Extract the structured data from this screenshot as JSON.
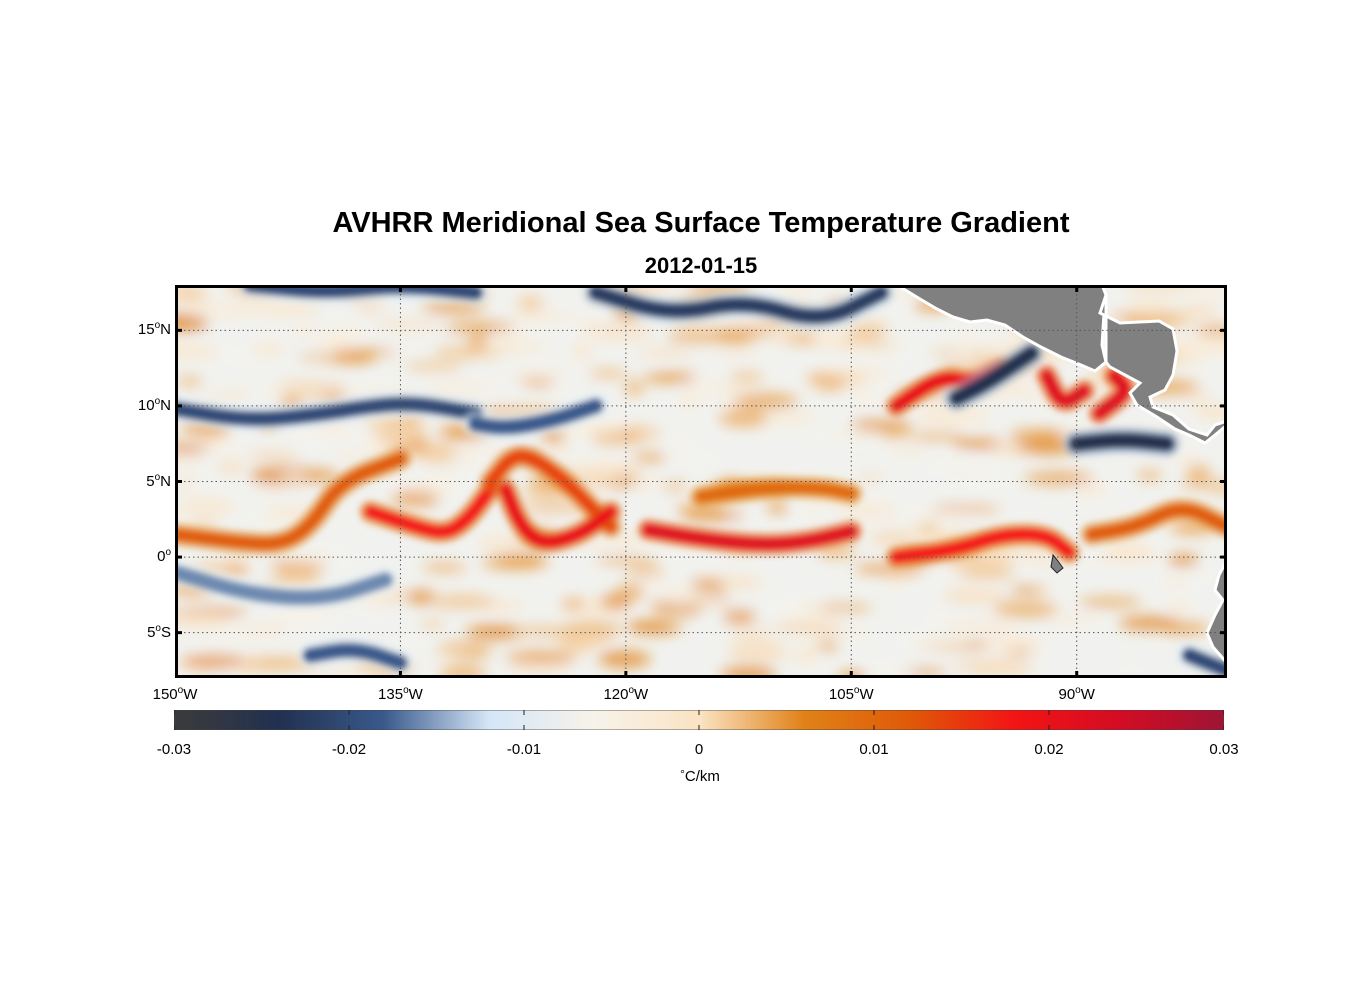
{
  "title": "AVHRR Meridional Sea Surface Temperature Gradient",
  "subtitle": "2012-01-15",
  "map": {
    "lon_range": [
      -150,
      -80
    ],
    "lat_range": [
      -8,
      18
    ],
    "lat_ticks": [
      {
        "value": 15,
        "num": "15",
        "hemi": "N"
      },
      {
        "value": 10,
        "num": "10",
        "hemi": "N"
      },
      {
        "value": 5,
        "num": "5",
        "hemi": "N"
      },
      {
        "value": 0,
        "num": "0",
        "hemi": ""
      },
      {
        "value": -5,
        "num": "5",
        "hemi": "S"
      }
    ],
    "lon_ticks": [
      {
        "value": -150,
        "num": "150",
        "hemi": "W"
      },
      {
        "value": -135,
        "num": "135",
        "hemi": "W"
      },
      {
        "value": -120,
        "num": "120",
        "hemi": "W"
      },
      {
        "value": -105,
        "num": "105",
        "hemi": "W"
      },
      {
        "value": -90,
        "num": "90",
        "hemi": "W"
      }
    ],
    "land_color": "#808080",
    "grid": "dotted"
  },
  "colorbar": {
    "min": -0.03,
    "max": 0.03,
    "tick_values": [
      -0.03,
      -0.02,
      -0.01,
      0,
      0.01,
      0.02,
      0.03
    ],
    "tick_labels": [
      "-0.03",
      "-0.02",
      "-0.01",
      "0",
      "0.01",
      "0.02",
      "0.03"
    ],
    "unit": "C/km",
    "unit_symbol": "°",
    "colors": [
      "#3b3b3b",
      "#223050",
      "#3a5a8c",
      "#d4e6f8",
      "#f7f3ea",
      "#fbe3c4",
      "#e08218",
      "#e05a08",
      "#f41414",
      "#d40c24",
      "#9e1434"
    ]
  },
  "chart_data": {
    "type": "heatmap",
    "variable": "meridional SST gradient",
    "units": "°C/km",
    "date": "2012-01-15",
    "xlim": [
      -150,
      -80
    ],
    "ylim": [
      -8,
      18
    ],
    "features": [
      {
        "type": "positive-front",
        "path_lon": [
          -150,
          -146,
          -143,
          -141,
          -139,
          -135
        ],
        "path_lat": [
          1.5,
          1,
          0.8,
          2,
          5,
          6.5
        ],
        "value": 0.012
      },
      {
        "type": "positive-front",
        "path_lon": [
          -137,
          -134,
          -132,
          -130.5,
          -129
        ],
        "path_lat": [
          3,
          2,
          1.5,
          2.5,
          4.5
        ],
        "value": 0.018
      },
      {
        "type": "positive-front",
        "path_lon": [
          -129,
          -127.5,
          -126,
          -124,
          -122,
          -121
        ],
        "path_lat": [
          5,
          6.8,
          6.5,
          5,
          3,
          2
        ],
        "value": 0.014
      },
      {
        "type": "positive-front",
        "path_lon": [
          -128,
          -127,
          -125.5,
          -123,
          -121
        ],
        "path_lat": [
          4.5,
          2,
          0.8,
          1.5,
          3
        ],
        "value": 0.02
      },
      {
        "type": "positive-front",
        "path_lon": [
          -118.5,
          -115,
          -111,
          -108,
          -105
        ],
        "path_lat": [
          1.8,
          1.2,
          0.8,
          1,
          1.7
        ],
        "value": 0.022
      },
      {
        "type": "positive-front",
        "path_lon": [
          -115,
          -111,
          -107,
          -105
        ],
        "path_lat": [
          4,
          4.6,
          4.6,
          4.2
        ],
        "value": 0.01
      },
      {
        "type": "positive-front",
        "path_lon": [
          -102,
          -98,
          -95,
          -92,
          -90.5
        ],
        "path_lat": [
          0,
          0.5,
          1.5,
          1.5,
          0.3
        ],
        "value": 0.018
      },
      {
        "type": "positive-front",
        "path_lon": [
          -102,
          -99,
          -97,
          -95
        ],
        "path_lat": [
          10,
          12,
          11.5,
          12.5
        ],
        "value": 0.02
      },
      {
        "type": "positive-front",
        "path_lon": [
          -92,
          -91,
          -89.5
        ],
        "path_lat": [
          12,
          10,
          11
        ],
        "value": 0.022
      },
      {
        "type": "positive-front",
        "path_lon": [
          -87.5,
          -86.5,
          -88.5
        ],
        "path_lat": [
          12,
          11,
          9.5
        ],
        "value": 0.022
      },
      {
        "type": "positive-front",
        "path_lon": [
          -89,
          -86,
          -83,
          -80
        ],
        "path_lat": [
          1.5,
          2,
          3.5,
          2
        ],
        "value": 0.012
      },
      {
        "type": "negative-front",
        "path_lon": [
          -150,
          -145,
          -140,
          -137,
          -134,
          -130
        ],
        "path_lat": [
          9.8,
          9,
          9.5,
          10,
          10.2,
          9.5
        ],
        "value": -0.02
      },
      {
        "type": "negative-front",
        "path_lon": [
          -130,
          -128,
          -125,
          -122
        ],
        "path_lat": [
          8.8,
          8.5,
          9,
          10
        ],
        "value": -0.018
      },
      {
        "type": "negative-front",
        "path_lon": [
          -145,
          -140,
          -135,
          -130
        ],
        "path_lat": [
          18,
          17.5,
          18,
          17.5
        ],
        "value": -0.02
      },
      {
        "type": "negative-front",
        "path_lon": [
          -122,
          -117,
          -112,
          -107,
          -103
        ],
        "path_lat": [
          17.5,
          16,
          17,
          15.5,
          17.5
        ],
        "value": -0.022
      },
      {
        "type": "negative-front",
        "path_lon": [
          -98,
          -96,
          -93
        ],
        "path_lat": [
          10.5,
          11.5,
          13.5
        ],
        "value": -0.024
      },
      {
        "type": "negative-front",
        "path_lon": [
          -90,
          -87,
          -84
        ],
        "path_lat": [
          7.5,
          7.8,
          7.5
        ],
        "value": -0.025
      },
      {
        "type": "negative-front",
        "path_lon": [
          -150,
          -145,
          -140,
          -136
        ],
        "path_lat": [
          -1,
          -2.5,
          -2.8,
          -1.5
        ],
        "value": -0.016
      },
      {
        "type": "negative-front",
        "path_lon": [
          -141,
          -138,
          -135
        ],
        "path_lat": [
          -6.5,
          -6,
          -7
        ],
        "value": -0.018
      },
      {
        "type": "negative-front",
        "path_lon": [
          -82.5,
          -80
        ],
        "path_lat": [
          -6.5,
          -7.5
        ],
        "value": -0.02
      }
    ]
  }
}
